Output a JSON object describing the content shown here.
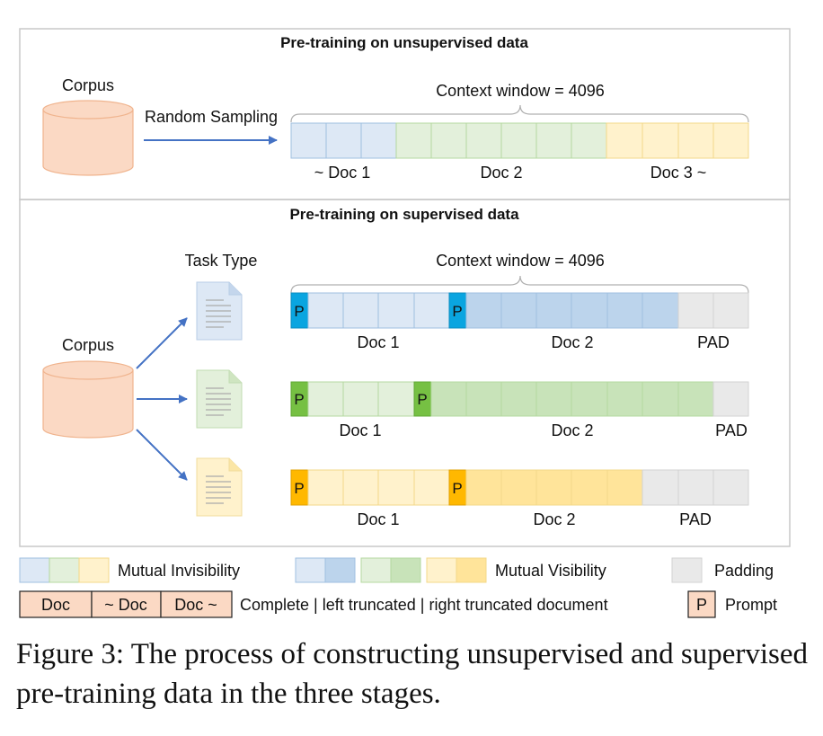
{
  "top": {
    "title": "Pre-training on unsupervised data",
    "corpus_label": "Corpus",
    "sampling_label": "Random Sampling",
    "context_label": "Context window = 4096",
    "doc_labels": [
      "~ Doc 1",
      "Doc 2",
      "Doc 3 ~"
    ]
  },
  "bottom": {
    "title": "Pre-training on supervised data",
    "task_type_label": "Task Type",
    "corpus_label": "Corpus",
    "context_label": "Context window = 4096",
    "rows": [
      {
        "prompt1": "P",
        "prompt2": "P",
        "doc1": "Doc 1",
        "doc2": "Doc 2",
        "pad": "PAD"
      },
      {
        "prompt1": "P",
        "prompt2": "P",
        "doc1": "Doc 1",
        "doc2": "Doc 2",
        "pad": "PAD"
      },
      {
        "prompt1": "P",
        "prompt2": "P",
        "doc1": "Doc 1",
        "doc2": "Doc 2",
        "pad": "PAD"
      }
    ]
  },
  "legend": {
    "mutual_invisibility": "Mutual Invisibility",
    "mutual_visibility": "Mutual Visibility",
    "padding": "Padding",
    "doc_boxes": [
      "Doc",
      "~ Doc",
      "Doc ~"
    ],
    "doc_description": "Complete | left truncated | right truncated document",
    "prompt_box": "P",
    "prompt_label": "Prompt"
  },
  "colors": {
    "blue_light": "#dde8f5",
    "blue_mid": "#bcd4ec",
    "blue_prompt": "#0aa5e0",
    "green_light": "#e3f0db",
    "green_mid": "#c8e3b9",
    "green_prompt": "#76c043",
    "yellow_light": "#fff2cc",
    "yellow_mid": "#ffe49a",
    "yellow_prompt": "#ffb800",
    "pad": "#e9e9e9",
    "corpus_fill": "#fbd9c4",
    "arrow": "#4472c4"
  },
  "caption": "Figure 3: The process of constructing unsupervised and supervised pre-training data in the three stages."
}
